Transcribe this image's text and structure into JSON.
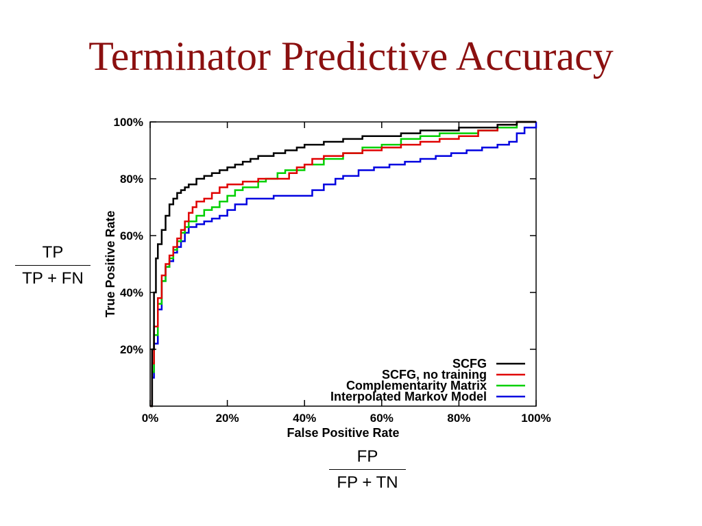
{
  "slide": {
    "title": "Terminator Predictive Accuracy"
  },
  "formulas": {
    "tpr": {
      "numerator": "TP",
      "denominator": "TP + FN"
    },
    "fpr": {
      "numerator": "FP",
      "denominator": "FP + TN"
    }
  },
  "chart_data": {
    "type": "line",
    "title": "",
    "xlabel": "False Positive Rate",
    "ylabel": "True Positive Rate",
    "xlim": [
      0,
      100
    ],
    "ylim": [
      0,
      100
    ],
    "xticks": [
      "0%",
      "20%",
      "40%",
      "60%",
      "80%",
      "100%"
    ],
    "yticks": [
      "20%",
      "40%",
      "60%",
      "80%",
      "100%"
    ],
    "ytick_values": [
      20,
      40,
      60,
      80,
      100
    ],
    "xtick_values": [
      0,
      20,
      40,
      60,
      80,
      100
    ],
    "legend_position": "bottom-right",
    "series": [
      {
        "name": "SCFG",
        "color": "#000000",
        "points": [
          [
            0,
            0
          ],
          [
            0.5,
            20
          ],
          [
            1,
            40
          ],
          [
            1.5,
            52
          ],
          [
            2,
            57
          ],
          [
            3,
            62
          ],
          [
            4,
            67
          ],
          [
            5,
            71
          ],
          [
            6,
            73
          ],
          [
            7,
            75
          ],
          [
            8,
            76
          ],
          [
            9,
            77
          ],
          [
            10,
            78
          ],
          [
            12,
            80
          ],
          [
            14,
            81
          ],
          [
            16,
            82
          ],
          [
            18,
            83
          ],
          [
            20,
            84
          ],
          [
            22,
            85
          ],
          [
            24,
            86
          ],
          [
            26,
            87
          ],
          [
            28,
            88
          ],
          [
            30,
            88
          ],
          [
            32,
            89
          ],
          [
            35,
            90
          ],
          [
            38,
            91
          ],
          [
            40,
            92
          ],
          [
            45,
            93
          ],
          [
            50,
            94
          ],
          [
            55,
            95
          ],
          [
            60,
            95
          ],
          [
            65,
            96
          ],
          [
            70,
            97
          ],
          [
            75,
            97
          ],
          [
            80,
            98
          ],
          [
            85,
            98
          ],
          [
            90,
            99
          ],
          [
            95,
            100
          ],
          [
            100,
            100
          ]
        ]
      },
      {
        "name": "SCFG, no training",
        "color": "#e00000",
        "points": [
          [
            0,
            0
          ],
          [
            0.5,
            15
          ],
          [
            1,
            28
          ],
          [
            2,
            38
          ],
          [
            3,
            46
          ],
          [
            4,
            50
          ],
          [
            5,
            53
          ],
          [
            6,
            56
          ],
          [
            7,
            59
          ],
          [
            8,
            62
          ],
          [
            9,
            65
          ],
          [
            10,
            68
          ],
          [
            11,
            70
          ],
          [
            12,
            72
          ],
          [
            14,
            73
          ],
          [
            16,
            75
          ],
          [
            18,
            77
          ],
          [
            20,
            78
          ],
          [
            24,
            79
          ],
          [
            28,
            80
          ],
          [
            33,
            80
          ],
          [
            36,
            82
          ],
          [
            38,
            84
          ],
          [
            40,
            85
          ],
          [
            42,
            87
          ],
          [
            45,
            88
          ],
          [
            50,
            89
          ],
          [
            55,
            90
          ],
          [
            60,
            91
          ],
          [
            65,
            92
          ],
          [
            70,
            93
          ],
          [
            75,
            94
          ],
          [
            80,
            95
          ],
          [
            85,
            97
          ],
          [
            90,
            99
          ],
          [
            95,
            100
          ],
          [
            100,
            100
          ]
        ]
      },
      {
        "name": "Complementarity Matrix",
        "color": "#00d000",
        "points": [
          [
            0,
            0
          ],
          [
            0.5,
            12
          ],
          [
            1,
            25
          ],
          [
            2,
            36
          ],
          [
            3,
            44
          ],
          [
            4,
            49
          ],
          [
            5,
            52
          ],
          [
            6,
            55
          ],
          [
            7,
            58
          ],
          [
            8,
            61
          ],
          [
            9,
            63
          ],
          [
            10,
            65
          ],
          [
            12,
            67
          ],
          [
            14,
            69
          ],
          [
            16,
            70
          ],
          [
            18,
            72
          ],
          [
            20,
            74
          ],
          [
            22,
            76
          ],
          [
            24,
            77
          ],
          [
            28,
            79
          ],
          [
            30,
            80
          ],
          [
            33,
            82
          ],
          [
            35,
            83
          ],
          [
            40,
            85
          ],
          [
            45,
            87
          ],
          [
            50,
            89
          ],
          [
            55,
            91
          ],
          [
            60,
            92
          ],
          [
            65,
            94
          ],
          [
            70,
            95
          ],
          [
            75,
            96
          ],
          [
            80,
            96
          ],
          [
            85,
            97
          ],
          [
            90,
            98
          ],
          [
            95,
            100
          ],
          [
            100,
            100
          ]
        ]
      },
      {
        "name": "Interpolated Markov Model",
        "color": "#0000e0",
        "points": [
          [
            0,
            0
          ],
          [
            0.5,
            10
          ],
          [
            1,
            22
          ],
          [
            2,
            34
          ],
          [
            3,
            44
          ],
          [
            4,
            49
          ],
          [
            5,
            51
          ],
          [
            6,
            54
          ],
          [
            7,
            56
          ],
          [
            8,
            58
          ],
          [
            9,
            61
          ],
          [
            10,
            63
          ],
          [
            12,
            64
          ],
          [
            14,
            65
          ],
          [
            16,
            66
          ],
          [
            18,
            67
          ],
          [
            20,
            69
          ],
          [
            22,
            71
          ],
          [
            25,
            73
          ],
          [
            28,
            73
          ],
          [
            32,
            74
          ],
          [
            38,
            74
          ],
          [
            42,
            76
          ],
          [
            45,
            78
          ],
          [
            48,
            80
          ],
          [
            50,
            81
          ],
          [
            54,
            83
          ],
          [
            58,
            84
          ],
          [
            62,
            85
          ],
          [
            66,
            86
          ],
          [
            70,
            87
          ],
          [
            74,
            88
          ],
          [
            78,
            89
          ],
          [
            82,
            90
          ],
          [
            86,
            91
          ],
          [
            90,
            92
          ],
          [
            93,
            93
          ],
          [
            95,
            96
          ],
          [
            97,
            98
          ],
          [
            100,
            100
          ]
        ]
      }
    ]
  }
}
